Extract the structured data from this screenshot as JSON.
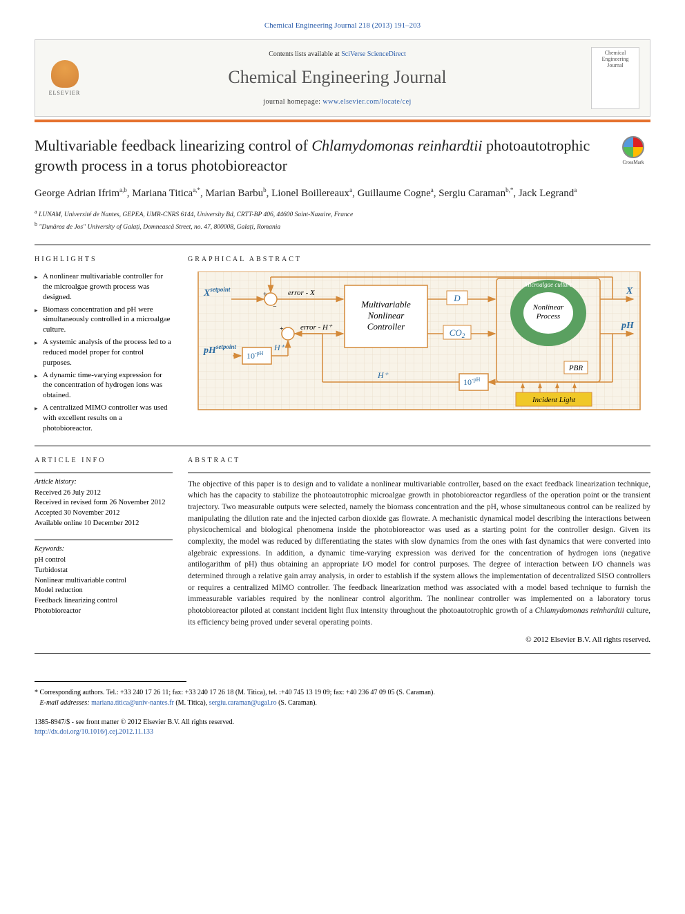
{
  "citation": "Chemical Engineering Journal 218 (2013) 191–203",
  "header": {
    "contents_prefix": "Contents lists available at ",
    "contents_link": "SciVerse ScienceDirect",
    "journal_name": "Chemical Engineering Journal",
    "homepage_prefix": "journal homepage: ",
    "homepage_url": "www.elsevier.com/locate/cej",
    "publisher_label": "ELSEVIER",
    "cover_line1": "Chemical",
    "cover_line2": "Engineering",
    "cover_line3": "Journal"
  },
  "crossmark_label": "CrossMark",
  "title_part1": "Multivariable feedback linearizing control of ",
  "title_italic": "Chlamydomonas reinhardtii",
  "title_part2": " photoautotrophic growth process in a torus photobioreactor",
  "authors": [
    {
      "name": "George Adrian Ifrim",
      "aff": "a,b"
    },
    {
      "name": "Mariana Titica",
      "aff": "a,*"
    },
    {
      "name": "Marian Barbu",
      "aff": "b"
    },
    {
      "name": "Lionel Boillereaux",
      "aff": "a"
    },
    {
      "name": "Guillaume Cogne",
      "aff": "a"
    },
    {
      "name": "Sergiu Caraman",
      "aff": "b,*"
    },
    {
      "name": "Jack Legrand",
      "aff": "a"
    }
  ],
  "affiliations": [
    {
      "sup": "a",
      "text": "LUNAM, Université de Nantes, GEPEA, UMR-CNRS 6144, University Bd, CRTT-BP 406, 44600 Saint-Nazaire, France"
    },
    {
      "sup": "b",
      "text": "\"Dunărea de Jos\" University of Galați, Domnească Street, no. 47, 800008, Galați, Romania"
    }
  ],
  "sections": {
    "highlights_label": "HIGHLIGHTS",
    "graphical_label": "GRAPHICAL ABSTRACT",
    "article_info_label": "ARTICLE INFO",
    "abstract_label": "ABSTRACT"
  },
  "highlights": [
    "A nonlinear multivariable controller for the microalgae growth process was designed.",
    "Biomass concentration and pH were simultaneously controlled in a microalgae culture.",
    "A systemic analysis of the process led to a reduced model proper for control purposes.",
    "A dynamic time-varying expression for the concentration of hydrogen ions was obtained.",
    "A centralized MIMO controller was used with excellent results on a photobioreactor."
  ],
  "graphical": {
    "box_controller": "Multivariable\nNonlinear\nController",
    "box_process": "Nonlinear\nProcess",
    "label_culture": "Microalgae culture",
    "label_pbr": "PBR",
    "label_light": "Incident Light",
    "in_x": "X",
    "in_x_sup": "setpoint",
    "in_ph": "pH",
    "in_ph_sup": "setpoint",
    "ten_ph": "10",
    "ten_ph_exp": "-pH",
    "h_plus": "H⁺",
    "err_x": "error - X",
    "err_h": "error - H⁺",
    "sig_d": "D",
    "sig_co2": "CO₂",
    "out_x": "X",
    "out_ph": "pH",
    "out_h": "H⁺",
    "colors": {
      "box_border": "#d48a3a",
      "grid_bg": "#f5ede0",
      "text": "#333333",
      "green": "#5aa060",
      "arrow": "#d48a3a",
      "light": "#f0c828"
    }
  },
  "article_info": {
    "history_label": "Article history:",
    "history": [
      "Received 26 July 2012",
      "Received in revised form 26 November 2012",
      "Accepted 30 November 2012",
      "Available online 10 December 2012"
    ],
    "keywords_label": "Keywords:",
    "keywords": [
      "pH control",
      "Turbidostat",
      "Nonlinear multivariable control",
      "Model reduction",
      "Feedback linearizing control",
      "Photobioreactor"
    ]
  },
  "abstract_main": "The objective of this paper is to design and to validate a nonlinear multivariable controller, based on the exact feedback linearization technique, which has the capacity to stabilize the photoautotrophic microalgae growth in photobioreactor regardless of the operation point or the transient trajectory. Two measurable outputs were selected, namely the biomass concentration and the pH, whose simultaneous control can be realized by manipulating the dilution rate and the injected carbon dioxide gas flowrate. A mechanistic dynamical model describing the interactions between physicochemical and biological phenomena inside the photobioreactor was used as a starting point for the controller design. Given its complexity, the model was reduced by differentiating the states with slow dynamics from the ones with fast dynamics that were converted into algebraic expressions. In addition, a dynamic time-varying expression was derived for the concentration of hydrogen ions (negative antilogarithm of pH) thus obtaining an appropriate I/O model for control purposes. The degree of interaction between I/O channels was determined through a relative gain array analysis, in order to establish if the system allows the implementation of decentralized SISO controllers or requires a centralized MIMO controller. The feedback linearization method was associated with a model based technique to furnish the immeasurable variables required by the nonlinear control algorithm. The nonlinear controller was implemented on a laboratory torus photobioreactor piloted at constant incident light flux intensity throughout the photoautotrophic growth of a ",
  "abstract_italic": "Chlamydomonas reinhardtii",
  "abstract_tail": " culture, its efficiency being proved under several operating points.",
  "copyright": "© 2012 Elsevier B.V. All rights reserved.",
  "corresponding": {
    "star": "*",
    "text": "Corresponding authors. Tel.: +33 240 17 26 11; fax: +33 240 17 26 18 (M. Titica), tel. :+40 745 13 19 09; fax: +40 236 47 09 05 (S. Caraman).",
    "email_label": "E-mail addresses:",
    "email1": "mariana.titica@univ-nantes.fr",
    "email1_name": " (M. Titica), ",
    "email2": "sergiu.caraman@ugal.ro",
    "email2_name": " (S. Caraman)."
  },
  "footer": {
    "issn": "1385-8947/$ - see front matter © 2012 Elsevier B.V. All rights reserved.",
    "doi": "http://dx.doi.org/10.1016/j.cej.2012.11.133"
  }
}
